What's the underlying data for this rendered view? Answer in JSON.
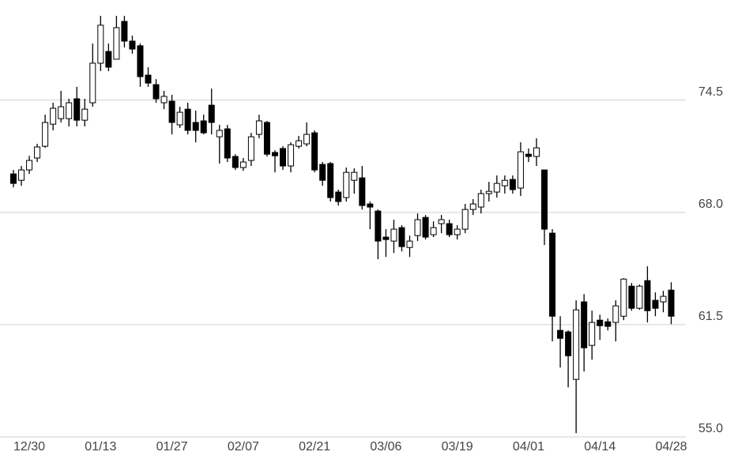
{
  "chart_data": {
    "type": "candlestick",
    "categories": [
      null,
      null,
      "12/30",
      null,
      null,
      null,
      null,
      null,
      null,
      null,
      null,
      "01/13",
      null,
      null,
      null,
      null,
      null,
      null,
      null,
      null,
      "01/27",
      null,
      null,
      null,
      null,
      null,
      null,
      null,
      null,
      "02/07",
      null,
      null,
      null,
      null,
      null,
      null,
      null,
      null,
      "02/21",
      null,
      null,
      null,
      null,
      null,
      null,
      null,
      null,
      "03/06",
      null,
      null,
      null,
      null,
      null,
      null,
      null,
      null,
      "03/19",
      null,
      null,
      null,
      null,
      null,
      null,
      null,
      null,
      "04/01",
      null,
      null,
      null,
      null,
      null,
      null,
      null,
      null,
      "04/14",
      null,
      null,
      null,
      null,
      null,
      null,
      null,
      null,
      "04/28"
    ],
    "open": [
      70.23,
      69.86,
      70.46,
      71.15,
      71.83,
      73.11,
      73.43,
      73.43,
      74.58,
      73.34,
      74.35,
      76.64,
      77.32,
      76.87,
      79.06,
      77.92,
      77.65,
      75.95,
      75.4,
      74.35,
      74.44,
      73.07,
      73.98,
      73.21,
      73.3,
      74.21,
      72.38,
      72.84,
      71.24,
      70.6,
      71.01,
      72.52,
      73.21,
      71.47,
      71.7,
      70.69,
      71.83,
      71.97,
      72.61,
      70.78,
      70.83,
      69.18,
      68.86,
      69.86,
      70.0,
      68.49,
      68.08,
      66.57,
      66.34,
      67.12,
      65.97,
      66.66,
      67.71,
      66.71,
      67.35,
      67.35,
      66.71,
      67.03,
      68.17,
      68.31,
      69.09,
      69.18,
      69.54,
      69.91,
      69.41,
      71.37,
      71.24,
      70.46,
      66.8,
      61.17,
      61.08,
      58.33,
      62.82,
      60.3,
      61.76,
      61.67,
      61.63,
      61.99,
      63.73,
      62.45,
      64.05,
      62.91,
      62.82,
      63.5
    ],
    "high": [
      70.46,
      70.69,
      71.28,
      71.97,
      73.66,
      74.35,
      75.04,
      74.58,
      75.27,
      74.58,
      77.78,
      79.38,
      77.78,
      79.38,
      79.38,
      78.24,
      77.78,
      76.41,
      75.72,
      75.04,
      74.81,
      74.12,
      74.35,
      73.89,
      73.66,
      75.17,
      73.07,
      73.07,
      71.37,
      71.15,
      72.61,
      73.66,
      73.3,
      71.6,
      71.83,
      72.06,
      72.43,
      73.21,
      72.75,
      70.92,
      70.92,
      69.32,
      70.6,
      70.55,
      70.69,
      68.63,
      68.17,
      67.03,
      67.58,
      67.26,
      66.66,
      67.94,
      67.85,
      67.48,
      67.85,
      67.58,
      67.26,
      68.49,
      68.77,
      69.32,
      69.77,
      70.14,
      70.14,
      70.14,
      72.06,
      71.7,
      72.29,
      70.46,
      67.03,
      61.99,
      61.17,
      62.91,
      63.27,
      62.31,
      62.08,
      61.86,
      62.91,
      64.19,
      63.91,
      63.82,
      64.88,
      63.37,
      63.46,
      63.96
    ],
    "low": [
      69.45,
      69.54,
      70.23,
      70.92,
      71.74,
      72.75,
      73.21,
      72.98,
      72.98,
      72.98,
      74.12,
      76.18,
      76.18,
      76.87,
      77.55,
      77.19,
      75.27,
      75.27,
      74.35,
      73.98,
      72.52,
      72.89,
      72.52,
      72.06,
      72.52,
      72.52,
      70.83,
      70.92,
      70.46,
      70.41,
      70.69,
      72.29,
      71.24,
      70.32,
      70.46,
      70.32,
      71.7,
      71.83,
      70.32,
      69.54,
      68.63,
      68.4,
      68.63,
      69.09,
      68.17,
      67.03,
      65.29,
      65.42,
      65.65,
      65.74,
      65.42,
      66.34,
      66.43,
      66.57,
      66.8,
      66.57,
      66.43,
      66.8,
      67.85,
      67.94,
      68.63,
      68.86,
      69.09,
      69.09,
      68.95,
      70.92,
      70.69,
      66.11,
      60.53,
      59.02,
      57.87,
      55.22,
      58.79,
      59.47,
      60.62,
      61.17,
      60.53,
      61.76,
      62.31,
      62.36,
      61.63,
      61.99,
      62.22,
      61.53
    ],
    "close": [
      69.68,
      70.46,
      71.01,
      71.79,
      73.21,
      74.03,
      74.12,
      74.35,
      73.34,
      73.98,
      76.64,
      78.84,
      76.41,
      78.7,
      77.92,
      77.46,
      75.86,
      75.49,
      74.58,
      74.72,
      73.21,
      73.8,
      72.75,
      72.75,
      72.61,
      73.21,
      72.75,
      71.15,
      70.6,
      70.92,
      72.38,
      73.3,
      71.37,
      71.28,
      70.69,
      71.92,
      72.15,
      72.52,
      70.46,
      69.86,
      68.86,
      68.63,
      70.32,
      70.32,
      68.4,
      68.31,
      66.34,
      66.43,
      67.03,
      66.02,
      66.34,
      67.58,
      66.57,
      67.12,
      67.58,
      66.71,
      67.03,
      68.17,
      68.49,
      69.09,
      69.22,
      69.68,
      69.86,
      69.32,
      71.51,
      71.24,
      71.74,
      67.03,
      61.99,
      60.71,
      59.7,
      62.36,
      60.16,
      61.63,
      61.44,
      61.4,
      62.59,
      64.14,
      62.45,
      63.73,
      62.31,
      62.45,
      63.14,
      61.99
    ],
    "up_color": "#ffffff",
    "down_color": "#000000",
    "ylim": [
      55,
      80.3
    ],
    "yticks": [
      {
        "value": 55,
        "label": "55.0"
      },
      61.5,
      {
        "value": 68,
        "label": "68.0"
      },
      74.5
    ],
    "grid": true
  }
}
